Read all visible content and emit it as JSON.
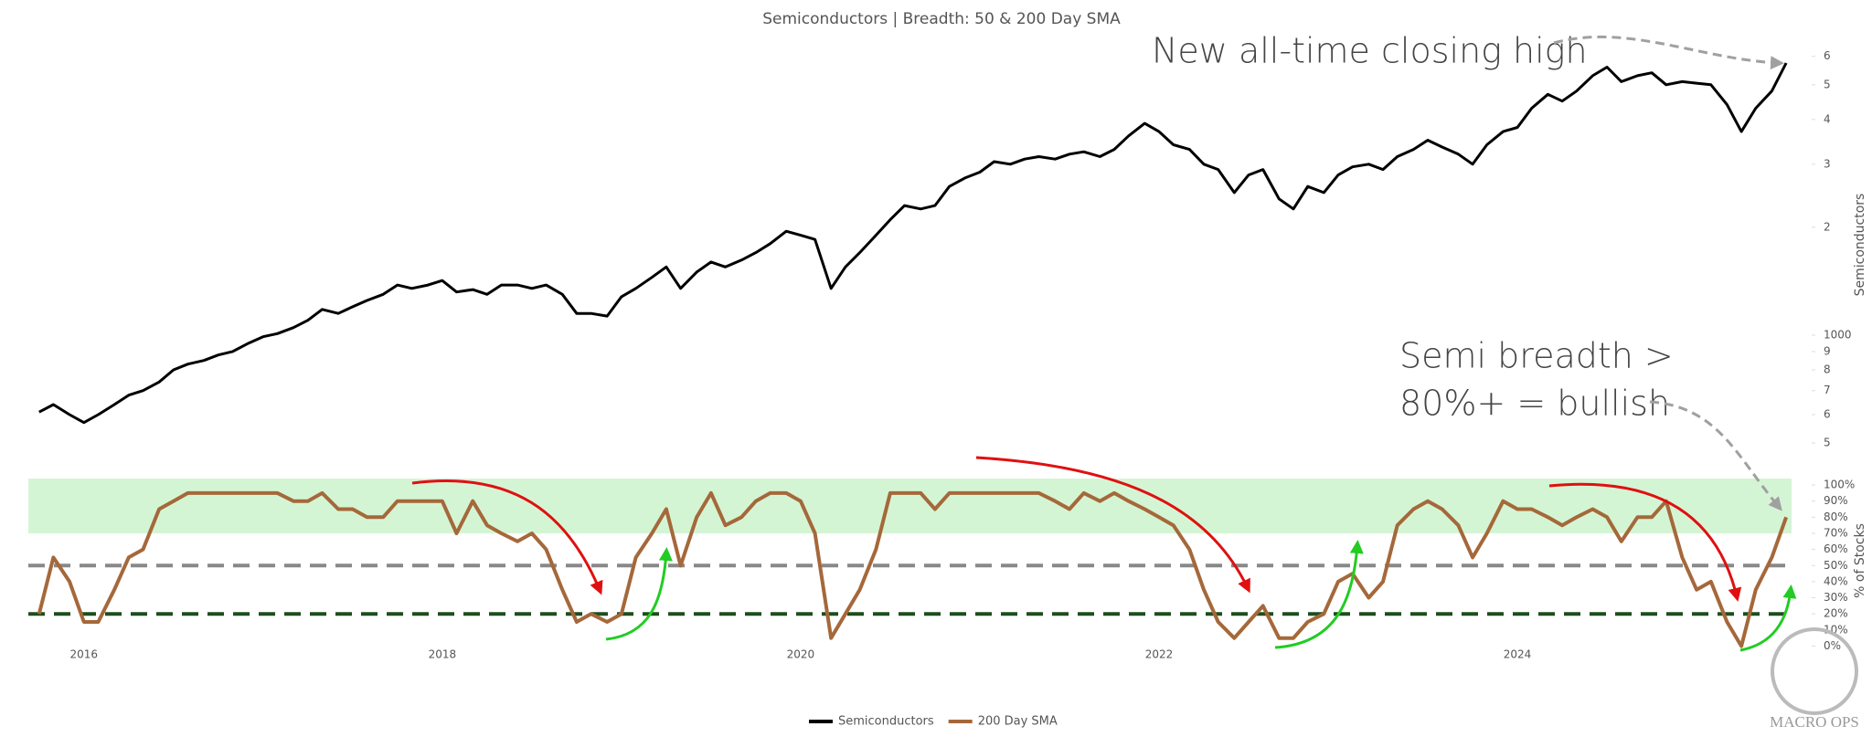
{
  "title": "Semiconductors | Breadth: 50 & 200 Day SMA",
  "watermark": "MACRO OPS",
  "chart_data": [
    {
      "type": "line",
      "log_scale": true,
      "y_label": "Semiconductors",
      "annotations": [
        "New all-time closing high"
      ],
      "xlim": [
        2015.69,
        2025.53
      ],
      "ylim": [
        450,
        7400
      ],
      "yticks": [
        {
          "value": 500,
          "label": "5"
        },
        {
          "value": 600,
          "label": "6"
        },
        {
          "value": 700,
          "label": "7"
        },
        {
          "value": 800,
          "label": "8"
        },
        {
          "value": 900,
          "label": "9"
        },
        1000,
        {
          "value": 2000,
          "label": "2"
        },
        {
          "value": 3000,
          "label": "3"
        },
        {
          "value": 4000,
          "label": "4"
        },
        {
          "value": 5000,
          "label": "5"
        },
        {
          "value": 6000,
          "label": "6"
        }
      ],
      "x": [
        2015.75,
        2015.83,
        2015.92,
        2016,
        2016.08,
        2016.17,
        2016.25,
        2016.33,
        2016.42,
        2016.5,
        2016.58,
        2016.67,
        2016.75,
        2016.83,
        2016.92,
        2017,
        2017.08,
        2017.17,
        2017.25,
        2017.33,
        2017.42,
        2017.5,
        2017.58,
        2017.67,
        2017.75,
        2017.83,
        2017.92,
        2018,
        2018.08,
        2018.17,
        2018.25,
        2018.33,
        2018.42,
        2018.5,
        2018.58,
        2018.67,
        2018.75,
        2018.83,
        2018.92,
        2019,
        2019.08,
        2019.17,
        2019.25,
        2019.33,
        2019.42,
        2019.5,
        2019.58,
        2019.67,
        2019.75,
        2019.83,
        2019.92,
        2020,
        2020.08,
        2020.17,
        2020.25,
        2020.33,
        2020.42,
        2020.5,
        2020.58,
        2020.67,
        2020.75,
        2020.83,
        2020.92,
        2021,
        2021.08,
        2021.17,
        2021.25,
        2021.33,
        2021.42,
        2021.5,
        2021.58,
        2021.67,
        2021.75,
        2021.83,
        2021.92,
        2022,
        2022.08,
        2022.17,
        2022.25,
        2022.33,
        2022.42,
        2022.5,
        2022.58,
        2022.67,
        2022.75,
        2022.83,
        2022.92,
        2023,
        2023.08,
        2023.17,
        2023.25,
        2023.33,
        2023.42,
        2023.5,
        2023.58,
        2023.67,
        2023.75,
        2023.83,
        2023.92,
        2024,
        2024.08,
        2024.17,
        2024.25,
        2024.33,
        2024.42,
        2024.5,
        2024.58,
        2024.67,
        2024.75,
        2024.83,
        2024.92,
        2025,
        2025.08,
        2025.17,
        2025.25,
        2025.33,
        2025.42,
        2025.5
      ],
      "series": [
        {
          "name": "Semiconductors",
          "color": "#000000",
          "values": [
            610,
            640,
            600,
            570,
            600,
            640,
            680,
            700,
            740,
            800,
            830,
            850,
            880,
            900,
            950,
            990,
            1010,
            1050,
            1100,
            1180,
            1150,
            1200,
            1250,
            1300,
            1380,
            1350,
            1380,
            1420,
            1320,
            1340,
            1300,
            1380,
            1380,
            1350,
            1380,
            1300,
            1150,
            1150,
            1130,
            1280,
            1350,
            1450,
            1550,
            1350,
            1500,
            1600,
            1550,
            1620,
            1700,
            1800,
            1950,
            1900,
            1850,
            1350,
            1550,
            1700,
            1900,
            2100,
            2300,
            2250,
            2300,
            2600,
            2750,
            2850,
            3050,
            3000,
            3100,
            3150,
            3100,
            3200,
            3250,
            3150,
            3300,
            3600,
            3900,
            3700,
            3400,
            3300,
            3000,
            2900,
            2500,
            2800,
            2900,
            2400,
            2250,
            2600,
            2500,
            2800,
            2950,
            3000,
            2900,
            3150,
            3300,
            3500,
            3350,
            3200,
            3000,
            3400,
            3700,
            3800,
            4300,
            4700,
            4500,
            4800,
            5300,
            5600,
            5100,
            5300,
            5400,
            5000,
            5100,
            5050,
            5000,
            4400,
            3700,
            4300,
            4800,
            5750
          ]
        }
      ]
    },
    {
      "type": "line",
      "y_label": "% of Stocks",
      "annotations": [
        "Semi breadth >",
        "80%+ = bullish"
      ],
      "band": [
        70,
        104
      ],
      "band_color": "#d4f5d4",
      "hlines": [
        {
          "value": 50,
          "color": "#888888"
        },
        {
          "value": 20,
          "color": "#1e4d1e"
        }
      ],
      "xlim": [
        2015.69,
        2025.53
      ],
      "xticks": [
        2016,
        2018,
        2020,
        2022,
        2024
      ],
      "ylim": [
        -2,
        104
      ],
      "yticks": [
        {
          "value": 0,
          "label": "0%"
        },
        {
          "value": 10,
          "label": "10%"
        },
        {
          "value": 20,
          "label": "20%"
        },
        {
          "value": 30,
          "label": "30%"
        },
        {
          "value": 40,
          "label": "40%"
        },
        {
          "value": 50,
          "label": "50%"
        },
        {
          "value": 60,
          "label": "60%"
        },
        {
          "value": 70,
          "label": "70%"
        },
        {
          "value": 80,
          "label": "80%"
        },
        {
          "value": 90,
          "label": "90%"
        },
        {
          "value": 100,
          "label": "100%"
        }
      ],
      "x": [
        2015.75,
        2015.83,
        2015.92,
        2016,
        2016.08,
        2016.17,
        2016.25,
        2016.33,
        2016.42,
        2016.5,
        2016.58,
        2016.67,
        2016.75,
        2016.83,
        2016.92,
        2017,
        2017.08,
        2017.17,
        2017.25,
        2017.33,
        2017.42,
        2017.5,
        2017.58,
        2017.67,
        2017.75,
        2017.83,
        2017.92,
        2018,
        2018.08,
        2018.17,
        2018.25,
        2018.33,
        2018.42,
        2018.5,
        2018.58,
        2018.67,
        2018.75,
        2018.83,
        2018.92,
        2019,
        2019.08,
        2019.17,
        2019.25,
        2019.33,
        2019.42,
        2019.5,
        2019.58,
        2019.67,
        2019.75,
        2019.83,
        2019.92,
        2020,
        2020.08,
        2020.17,
        2020.25,
        2020.33,
        2020.42,
        2020.5,
        2020.58,
        2020.67,
        2020.75,
        2020.83,
        2020.92,
        2021,
        2021.08,
        2021.17,
        2021.25,
        2021.33,
        2021.42,
        2021.5,
        2021.58,
        2021.67,
        2021.75,
        2021.83,
        2021.92,
        2022,
        2022.08,
        2022.17,
        2022.25,
        2022.33,
        2022.42,
        2022.5,
        2022.58,
        2022.67,
        2022.75,
        2022.83,
        2022.92,
        2023,
        2023.08,
        2023.17,
        2023.25,
        2023.33,
        2023.42,
        2023.5,
        2023.58,
        2023.67,
        2023.75,
        2023.83,
        2023.92,
        2024,
        2024.08,
        2024.17,
        2024.25,
        2024.33,
        2024.42,
        2024.5,
        2024.58,
        2024.67,
        2024.75,
        2024.83,
        2024.92,
        2025,
        2025.08,
        2025.17,
        2025.25,
        2025.33,
        2025.42,
        2025.5
      ],
      "series": [
        {
          "name": "200 Day SMA",
          "color": "#a5683a",
          "values": [
            20,
            55,
            40,
            15,
            15,
            35,
            55,
            60,
            85,
            90,
            95,
            95,
            95,
            95,
            95,
            95,
            95,
            90,
            90,
            95,
            85,
            85,
            80,
            80,
            90,
            90,
            90,
            90,
            70,
            90,
            75,
            70,
            65,
            70,
            60,
            35,
            15,
            20,
            15,
            20,
            55,
            70,
            85,
            50,
            80,
            95,
            75,
            80,
            90,
            95,
            95,
            90,
            70,
            5,
            20,
            35,
            60,
            95,
            95,
            95,
            85,
            95,
            95,
            95,
            95,
            95,
            95,
            95,
            90,
            85,
            95,
            90,
            95,
            90,
            85,
            80,
            75,
            60,
            35,
            15,
            5,
            15,
            25,
            5,
            5,
            15,
            20,
            40,
            45,
            30,
            40,
            75,
            85,
            90,
            85,
            75,
            55,
            70,
            90,
            85,
            85,
            80,
            75,
            80,
            85,
            80,
            65,
            80,
            80,
            90,
            55,
            35,
            40,
            15,
            0,
            35,
            55,
            80
          ]
        }
      ]
    }
  ]
}
